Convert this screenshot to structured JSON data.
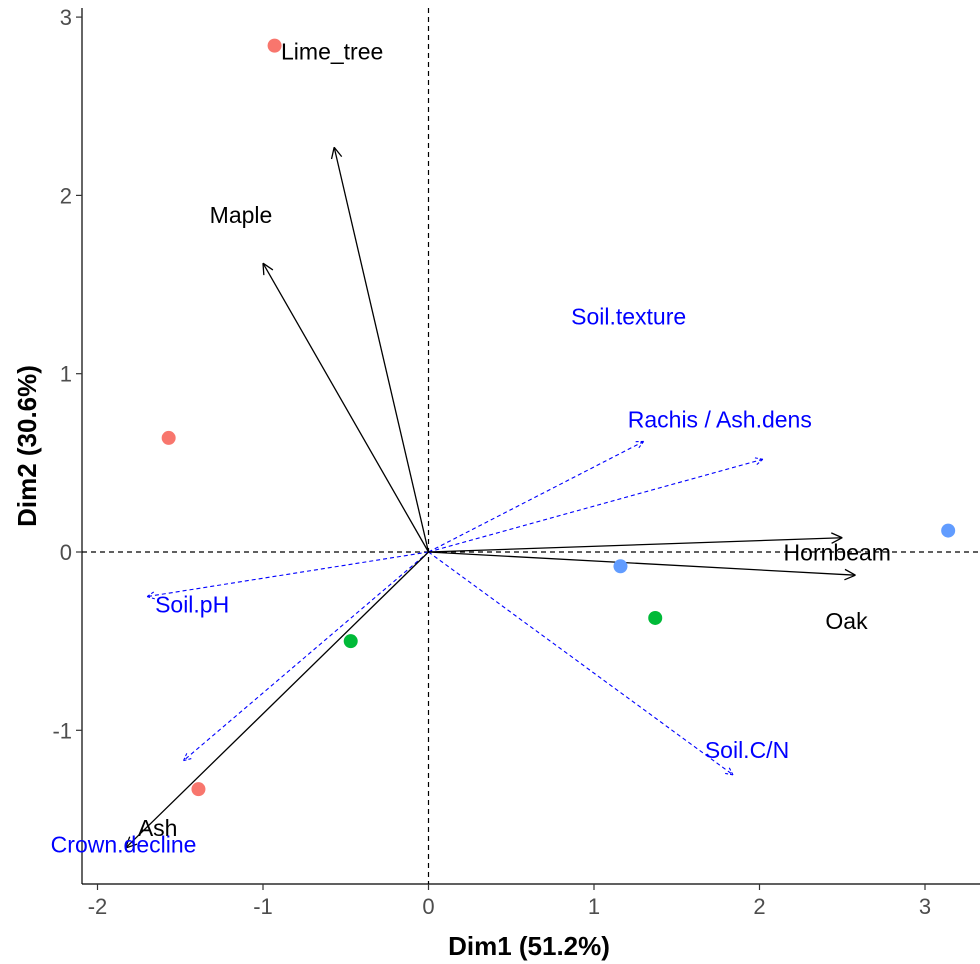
{
  "chart_data": {
    "type": "scatter",
    "xlabel": "Dim1 (51.2%)",
    "ylabel": "Dim2 (30.6%)",
    "xlim": [
      -2.05,
      3.3
    ],
    "ylim": [
      -1.87,
      3.05
    ],
    "x_ticks": [
      "-2",
      "-1",
      "0",
      "1",
      "2",
      "3"
    ],
    "y_ticks": [
      "-1",
      "0",
      "1",
      "2",
      "3"
    ],
    "x_tick_values": [
      -2,
      -1,
      0,
      1,
      2,
      3
    ],
    "y_tick_values": [
      -1,
      0,
      1,
      2,
      3
    ],
    "grid": false,
    "reference_lines": {
      "x": 0,
      "y": 0
    },
    "points": [
      {
        "x": -0.93,
        "y": 2.84,
        "color": "#F8766D"
      },
      {
        "x": -1.57,
        "y": 0.64,
        "color": "#F8766D"
      },
      {
        "x": -1.39,
        "y": -1.33,
        "color": "#F8766D"
      },
      {
        "x": -0.47,
        "y": -0.5,
        "color": "#00BA38"
      },
      {
        "x": 1.37,
        "y": -0.37,
        "color": "#00BA38"
      },
      {
        "x": 1.16,
        "y": -0.08,
        "color": "#619CFF"
      },
      {
        "x": 3.14,
        "y": 0.12,
        "color": "#619CFF"
      }
    ],
    "species_vectors": [
      {
        "name": "Lime_tree",
        "x": -0.57,
        "y": 2.27
      },
      {
        "name": "Maple",
        "x": -1.0,
        "y": 1.62
      },
      {
        "name": "Hornbeam",
        "x": 2.5,
        "y": 0.08
      },
      {
        "name": "Oak",
        "x": 2.58,
        "y": -0.13
      },
      {
        "name": "Ash",
        "x": -1.83,
        "y": -1.66
      }
    ],
    "environment_vectors": [
      {
        "name": "Soil.texture",
        "x": 1.3,
        "y": 0.62
      },
      {
        "name": "Rachis / Ash.dens",
        "x": 2.02,
        "y": 0.52
      },
      {
        "name": "Soil.pH",
        "x": -1.7,
        "y": -0.25
      },
      {
        "name": "Crown.decline",
        "x": -1.48,
        "y": -1.17
      },
      {
        "name": "Soil.C/N",
        "x": 1.84,
        "y": -1.25
      }
    ],
    "species_vector_color": "#000000",
    "environment_vector_color": "#0000FF"
  }
}
